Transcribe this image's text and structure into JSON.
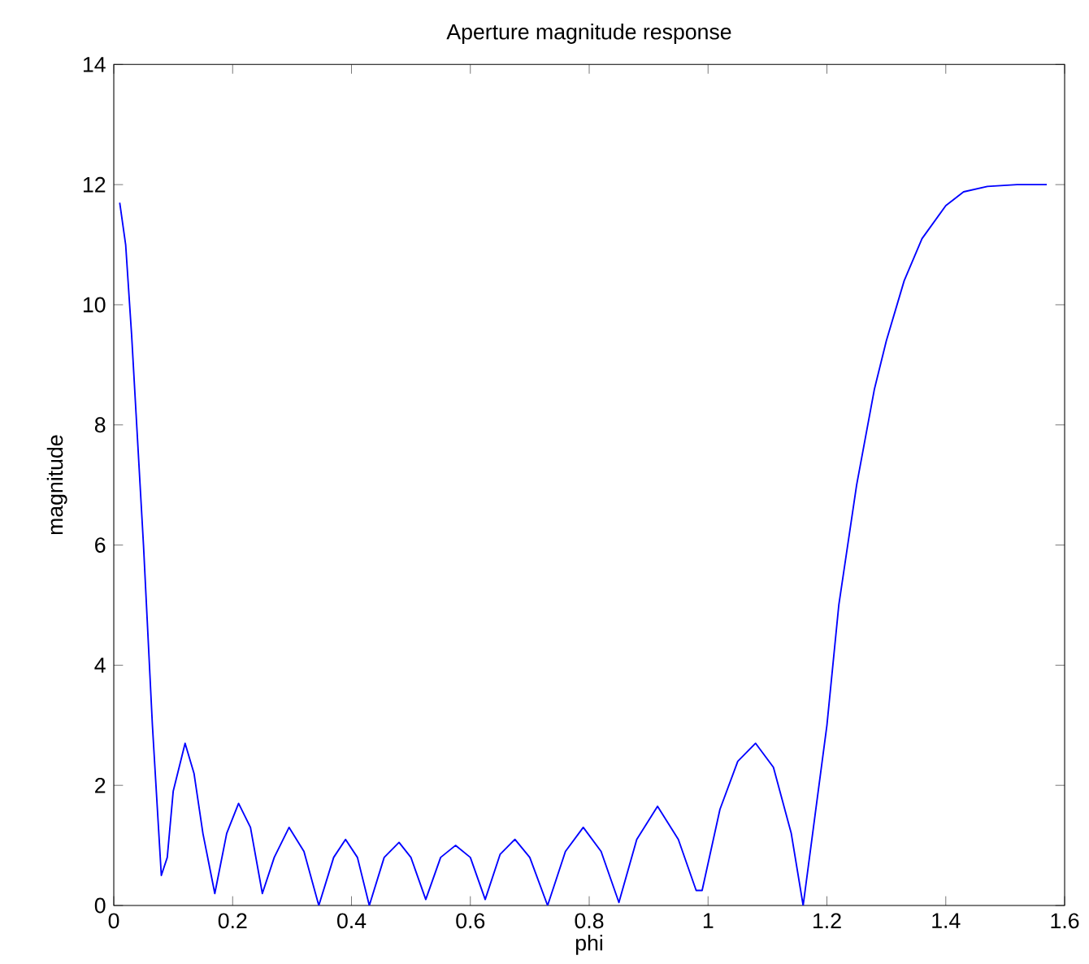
{
  "chart_data": {
    "type": "line",
    "title": "Aperture magnitude response",
    "xlabel": "phi",
    "ylabel": "magnitude",
    "xlim": [
      0,
      1.6
    ],
    "ylim": [
      0,
      14
    ],
    "xticks": [
      0,
      0.2,
      0.4,
      0.6,
      0.8,
      1,
      1.2,
      1.4,
      1.6
    ],
    "yticks": [
      0,
      2,
      4,
      6,
      8,
      10,
      12,
      14
    ],
    "grid": false,
    "marker": "none",
    "line_style": "solid",
    "series": [
      {
        "color": "#0000ff",
        "x": [
          0.01,
          0.02,
          0.03,
          0.05,
          0.065,
          0.08,
          0.09,
          0.1,
          0.12,
          0.135,
          0.15,
          0.17,
          0.19,
          0.21,
          0.23,
          0.25,
          0.27,
          0.295,
          0.32,
          0.345,
          0.37,
          0.39,
          0.41,
          0.43,
          0.455,
          0.48,
          0.5,
          0.525,
          0.55,
          0.575,
          0.6,
          0.625,
          0.65,
          0.675,
          0.7,
          0.73,
          0.76,
          0.79,
          0.82,
          0.85,
          0.88,
          0.915,
          0.95,
          0.98,
          0.99,
          1.02,
          1.05,
          1.08,
          1.11,
          1.14,
          1.16,
          1.18,
          1.2,
          1.22,
          1.25,
          1.28,
          1.3,
          1.33,
          1.36,
          1.4,
          1.43,
          1.47,
          1.52,
          1.57
        ],
        "values": [
          11.7,
          11.0,
          9.5,
          6,
          3,
          0.5,
          0.8,
          1.9,
          2.7,
          2.2,
          1.2,
          0.2,
          1.2,
          1.7,
          1.3,
          0.2,
          0.8,
          1.3,
          0.9,
          0,
          0.8,
          1.1,
          0.8,
          0,
          0.8,
          1.05,
          0.8,
          0.1,
          0.8,
          1.0,
          0.8,
          0.1,
          0.85,
          1.1,
          0.8,
          0,
          0.9,
          1.3,
          0.9,
          0.05,
          1.1,
          1.65,
          1.1,
          0.25,
          0.25,
          1.6,
          2.4,
          2.7,
          2.3,
          1.2,
          0,
          1.5,
          3.0,
          5.0,
          7.0,
          8.6,
          9.4,
          10.4,
          11.1,
          11.65,
          11.88,
          11.97,
          12.0,
          12.0
        ]
      }
    ]
  }
}
